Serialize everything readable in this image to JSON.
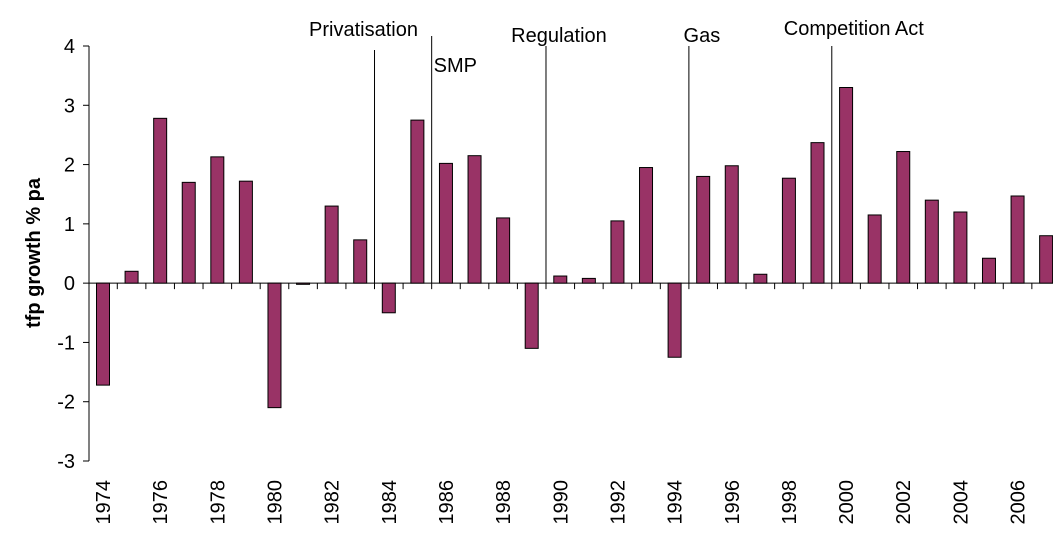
{
  "chart_data": {
    "type": "bar",
    "y_label": "tfp growth % pa",
    "categories": [
      "1974",
      null,
      "1976",
      null,
      "1978",
      null,
      "1980",
      null,
      "1982",
      null,
      "1984",
      null,
      "1986",
      null,
      "1988",
      null,
      "1990",
      null,
      "1992",
      null,
      "1994",
      null,
      "1996",
      null,
      "1998",
      null,
      "2000",
      null,
      "2002",
      null,
      "2004",
      null,
      "2006",
      null
    ],
    "values": [
      -1.72,
      0.2,
      2.78,
      1.7,
      2.13,
      1.72,
      -2.1,
      -0.02,
      1.3,
      0.73,
      -0.5,
      2.75,
      2.02,
      2.15,
      1.1,
      -1.1,
      0.12,
      0.08,
      1.05,
      1.95,
      -1.25,
      1.8,
      1.98,
      0.15,
      1.77,
      2.37,
      3.3,
      1.15,
      2.22,
      1.4,
      1.2,
      0.42,
      1.47,
      0.8
    ],
    "color": "#993366",
    "ylim": [
      -3,
      4
    ],
    "yticks": [
      -3,
      -2,
      -1,
      0,
      1,
      2,
      3,
      4
    ],
    "annotations": [
      {
        "text": "Privatisation",
        "x": 1983.5
      },
      {
        "text": "SMP",
        "x": 1985.5
      },
      {
        "text": "Regulation",
        "x": 1989.5
      },
      {
        "text": "Gas",
        "x": 1994.5
      },
      {
        "text": "Competition Act",
        "x": 1999.5
      }
    ]
  }
}
